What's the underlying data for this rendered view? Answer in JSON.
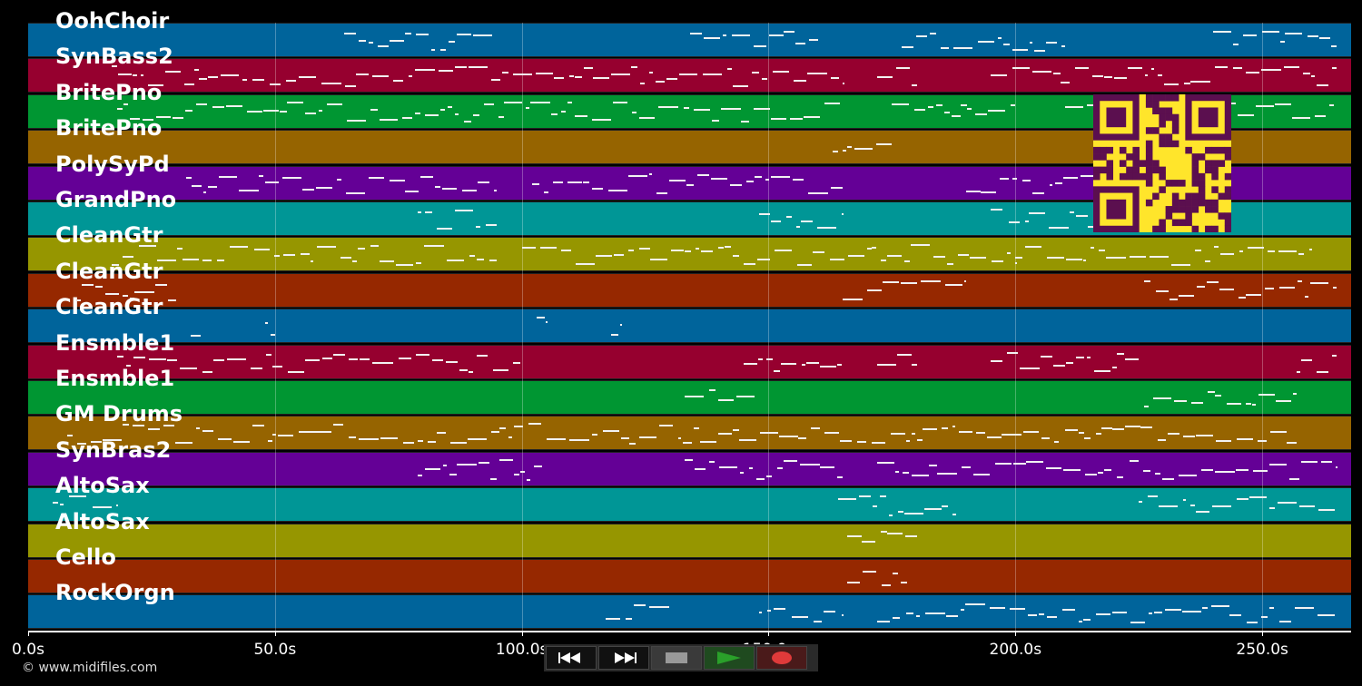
{
  "tracks": [
    {
      "name": "OohChoir",
      "color": "#00649b"
    },
    {
      "name": "SynBass2",
      "color": "#96002f"
    },
    {
      "name": "BritePno",
      "color": "#009632"
    },
    {
      "name": "BritePno",
      "color": "#966400"
    },
    {
      "name": "PolySyPd",
      "color": "#640096"
    },
    {
      "name": "GrandPno",
      "color": "#009696"
    },
    {
      "name": "CleanGtr",
      "color": "#969600"
    },
    {
      "name": "CleanGtr",
      "color": "#962800"
    },
    {
      "name": "CleanGtr",
      "color": "#00649b"
    },
    {
      "name": "Ensmble1",
      "color": "#96002f"
    },
    {
      "name": "Ensmble1",
      "color": "#009632"
    },
    {
      "name": "GM Drums",
      "color": "#966400"
    },
    {
      "name": "SynBras2",
      "color": "#640096"
    },
    {
      "name": "AltoSax",
      "color": "#009696"
    },
    {
      "name": "AltoSax",
      "color": "#969600"
    },
    {
      "name": "Cello",
      "color": "#962800"
    },
    {
      "name": "RockOrgn",
      "color": "#00649b"
    }
  ],
  "timeline": {
    "duration_s": 268,
    "ticks": [
      {
        "t": 0,
        "label": "0.0s"
      },
      {
        "t": 50,
        "label": "50.0s"
      },
      {
        "t": 100,
        "label": "100.0s"
      },
      {
        "t": 150,
        "label": "150.0s"
      },
      {
        "t": 200,
        "label": "200.0s"
      },
      {
        "t": 250,
        "label": "250.0s"
      }
    ]
  },
  "copyright": "© www.midifiles.com",
  "transport": {
    "rewind_icon": "rewind-icon",
    "forward_icon": "fast-forward-icon",
    "stop_icon": "stop-icon",
    "play_icon": "play-icon",
    "record_icon": "record-icon",
    "play_color": "#2aa02a",
    "record_color": "#e03a3a"
  },
  "qr_colors": {
    "bg": "#ffe52b",
    "fg": "#5b0f4f"
  }
}
